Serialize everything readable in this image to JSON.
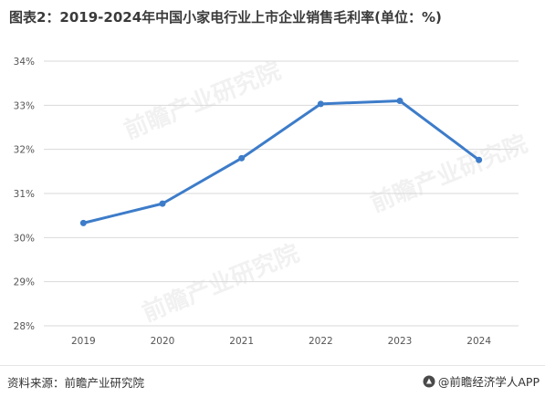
{
  "title": "图表2：2019-2024年中国小家电行业上市企业销售毛利率(单位：%)",
  "footer": {
    "source": "资料来源：前瞻产业研究院",
    "brand": "@前瞻经济学人APP"
  },
  "colors": {
    "line": "#3d7cc9",
    "grid": "#d9d9d9",
    "axis_text": "#555555"
  },
  "chart_data": {
    "type": "line",
    "title": "图表2：2019-2024年中国小家电行业上市企业销售毛利率(单位：%)",
    "categories": [
      "2019",
      "2020",
      "2021",
      "2022",
      "2023",
      "2024"
    ],
    "series": [
      {
        "values": [
          30.33,
          30.77,
          31.8,
          33.03,
          33.1,
          31.76
        ]
      }
    ],
    "ylim": [
      28,
      34
    ],
    "yticks": [
      "28%",
      "29%",
      "30%",
      "31%",
      "32%",
      "33%",
      "34%"
    ],
    "grid": true,
    "legend": "none"
  }
}
